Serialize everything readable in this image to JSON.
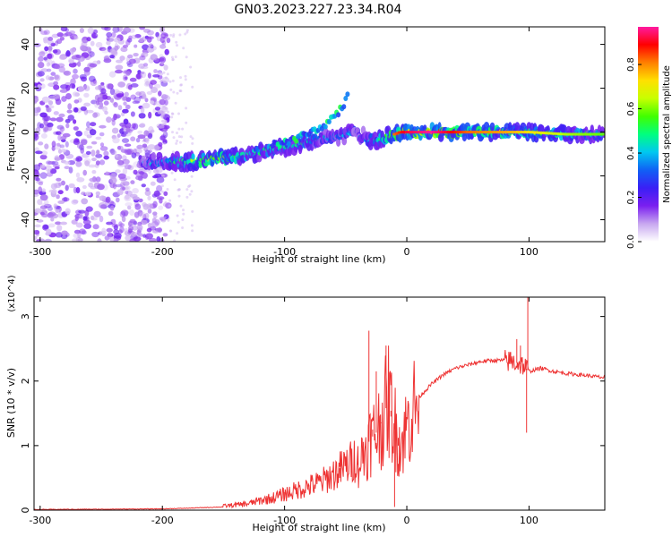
{
  "chart_data": [
    {
      "type": "heatmap",
      "title": "GN03.2023.227.23.34.R04",
      "xlabel": "Height of straight line (km)",
      "ylabel": "Frequency (Hz)",
      "xlim": [
        -305,
        162
      ],
      "ylim": [
        -50,
        48
      ],
      "xticks": [
        -300,
        -200,
        -100,
        0,
        100
      ],
      "yticks": [
        -40,
        -20,
        0,
        20,
        40
      ],
      "colorbar": {
        "label": "Normalized spectral amplitude",
        "range": [
          0.0,
          0.97
        ],
        "ticks": [
          0.0,
          0.2,
          0.4,
          0.6,
          0.8
        ],
        "colormap": [
          "#ffffff",
          "#c8a8f0",
          "#7a1ff0",
          "#3a1ff5",
          "#1060f5",
          "#00c8f0",
          "#00ff7f",
          "#40ff00",
          "#c8ff00",
          "#ffe000",
          "#ff8000",
          "#ff0000",
          "#ff1aa0"
        ]
      },
      "ridge": {
        "x": [
          -218,
          -200,
          -180,
          -160,
          -140,
          -120,
          -100,
          -85,
          -70,
          -60,
          -50,
          -45,
          -40,
          -35,
          -30,
          -25,
          -20,
          -15,
          -10,
          -5,
          0,
          20,
          50,
          80,
          100,
          130,
          162
        ],
        "y": [
          -14,
          -14,
          -13.5,
          -12.5,
          -11.5,
          -9,
          -7,
          -5,
          -3,
          -2,
          -1,
          0,
          -1,
          -2,
          -4,
          -4,
          -3,
          -2,
          -1,
          0,
          0,
          0,
          0,
          0,
          0,
          -1,
          -1
        ],
        "amplitude": [
          0.35,
          0.45,
          0.6,
          0.75,
          0.6,
          0.5,
          0.55,
          0.5,
          0.45,
          0.45,
          0.45,
          0.4,
          0.35,
          0.4,
          0.45,
          0.5,
          0.6,
          0.7,
          0.75,
          0.8,
          0.85,
          0.9,
          0.75,
          0.7,
          0.65,
          0.55,
          0.5
        ]
      },
      "branch": {
        "x": [
          -110,
          -90,
          -75,
          -60,
          -52,
          -48
        ],
        "y": [
          -6,
          -3,
          1,
          6,
          12,
          18
        ]
      }
    },
    {
      "type": "line",
      "xlabel": "Height of straight line (km)",
      "ylabel": "SNR (10 * v/v)",
      "multiplier": "(x10^4)",
      "xlim": [
        -305,
        162
      ],
      "ylim": [
        0,
        3.3
      ],
      "xticks": [
        -300,
        -200,
        -100,
        0,
        100
      ],
      "yticks": [
        0,
        1,
        2,
        3
      ],
      "color": "#ee3333",
      "series": [
        {
          "x": [
            -305,
            -250,
            -200,
            -180,
            -150,
            -130,
            -120,
            -110,
            -100,
            -90,
            -80,
            -70,
            -60,
            -50,
            -45,
            -40,
            -35,
            -30,
            -25,
            -20,
            -15,
            -10,
            -5,
            0,
            5,
            10,
            20,
            30,
            40,
            50,
            60,
            70,
            80,
            85,
            90,
            95,
            100,
            110,
            120,
            130,
            140,
            150,
            162
          ],
          "y": [
            0.01,
            0.015,
            0.02,
            0.03,
            0.05,
            0.08,
            0.12,
            0.15,
            0.2,
            0.25,
            0.3,
            0.35,
            0.45,
            0.55,
            0.6,
            0.7,
            0.9,
            1.1,
            1.2,
            1.4,
            1.7,
            1.3,
            1.0,
            1.3,
            1.55,
            1.75,
            1.95,
            2.1,
            2.2,
            2.25,
            2.3,
            2.32,
            2.32,
            2.3,
            2.28,
            2.25,
            2.15,
            2.2,
            2.15,
            2.12,
            2.1,
            2.08,
            2.05
          ],
          "spikes": [
            {
              "x": -100,
              "y": 0.28
            },
            {
              "x": -80,
              "y": 0.35
            },
            {
              "x": -65,
              "y": 0.48
            },
            {
              "x": -55,
              "y": 0.65
            },
            {
              "x": -45,
              "y": 0.72
            },
            {
              "x": -40,
              "y": 0.82
            },
            {
              "x": -31,
              "y": 2.78
            },
            {
              "x": -28,
              "y": 1.25
            },
            {
              "x": -25,
              "y": 2.15
            },
            {
              "x": -21,
              "y": 1.35
            },
            {
              "x": -17,
              "y": 2.55
            },
            {
              "x": -13,
              "y": 1.45
            },
            {
              "x": -10,
              "y": 0.05
            },
            {
              "x": -7,
              "y": 1.0
            },
            {
              "x": 85,
              "y": 2.45
            },
            {
              "x": 90,
              "y": 2.65
            },
            {
              "x": 93,
              "y": 2.55
            },
            {
              "x": 99,
              "y": 3.3
            },
            {
              "x": 98,
              "y": 1.2
            }
          ]
        }
      ]
    }
  ]
}
